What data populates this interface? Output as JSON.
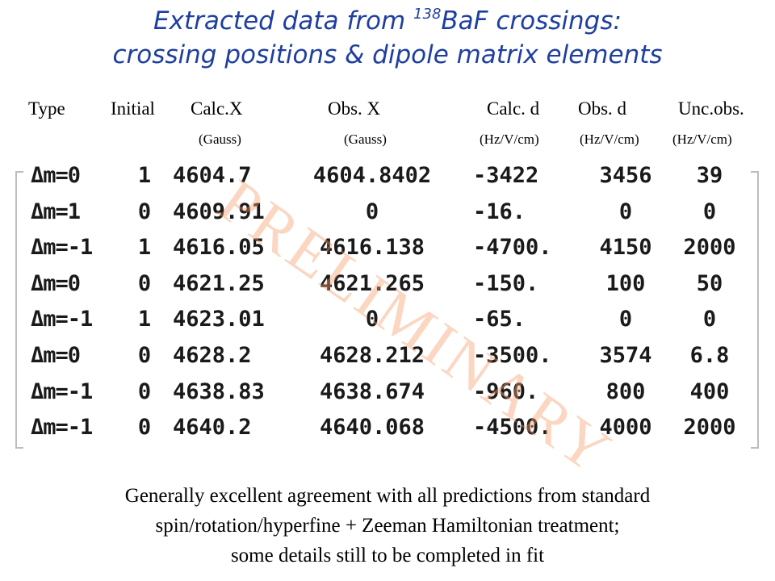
{
  "title": {
    "line1_before": "Extracted data from ",
    "line1_sup": "138",
    "line1_after": "BaF crossings:",
    "line2": "crossing positions & dipole matrix elements"
  },
  "headers": [
    "Type",
    "Initial",
    "Calc.X",
    "Obs. X",
    "Calc. d",
    "Obs. d",
    "Unc.obs."
  ],
  "units": [
    "(Gauss)",
    "(Gauss)",
    "(Hz/V/cm)",
    "(Hz/V/cm)",
    "(Hz/V/cm)"
  ],
  "rows": [
    [
      "Δm=0",
      "1",
      "4604.7",
      "4604.8402",
      "-3422",
      "3456",
      "39"
    ],
    [
      "Δm=1",
      "0",
      "4609.91",
      "0",
      "-16.",
      "0",
      "0"
    ],
    [
      "Δm=-1",
      "1",
      "4616.05",
      "4616.138",
      "-4700.",
      "4150",
      "2000"
    ],
    [
      "Δm=0",
      "0",
      "4621.25",
      "4621.265",
      "-150.",
      "100",
      "50"
    ],
    [
      "Δm=-1",
      "1",
      "4623.01",
      "0",
      "-65.",
      "0",
      "0"
    ],
    [
      "Δm=0",
      "0",
      "4628.2",
      "4628.212",
      "-3500.",
      "3574",
      "6.8"
    ],
    [
      "Δm=-1",
      "0",
      "4638.83",
      "4638.674",
      "-960.",
      "800",
      "400"
    ],
    [
      "Δm=-1",
      "0",
      "4640.2",
      "4640.068",
      "-4500.",
      "4000",
      "2000"
    ]
  ],
  "watermark": "PRELIMINARY",
  "caption": [
    "Generally excellent agreement with all predictions from standard",
    "spin/rotation/hyperfine + Zeeman Hamiltonian treatment;",
    "some details still to be completed in fit"
  ]
}
